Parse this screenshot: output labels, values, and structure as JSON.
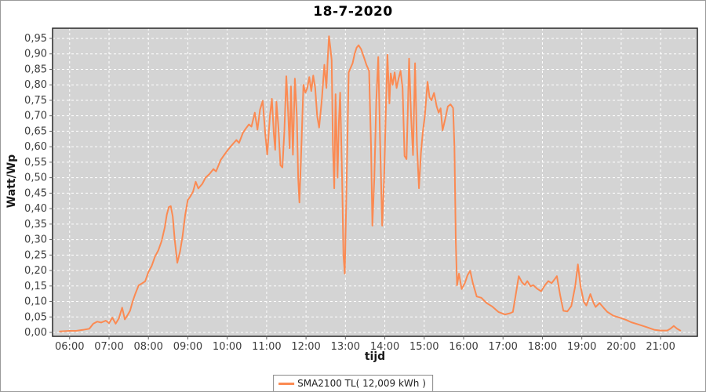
{
  "title": "18-7-2020",
  "axis": {
    "y_title": "Watt/Wp",
    "x_title": "tijd"
  },
  "legend": {
    "label": "SMA2100 TL( 12,009 kWh )"
  },
  "colors": {
    "plot_bg": "#d4d4d4",
    "grid": "#ffffff",
    "line": "#fb8a52",
    "plot_border": "#262626",
    "tick": "#666666",
    "tick_label": "#3d3d3d"
  },
  "chart_data": {
    "type": "line",
    "title": "18-7-2020",
    "xlabel": "tijd",
    "ylabel": "Watt/Wp",
    "ylim": [
      0,
      0.95
    ],
    "x_range_minutes": [
      334,
      1316
    ],
    "grid": true,
    "legend_position": "bottom-center",
    "x_tick_labels": [
      "06:00",
      "07:00",
      "08:00",
      "09:00",
      "10:00",
      "11:00",
      "12:00",
      "13:00",
      "14:00",
      "15:00",
      "16:00",
      "17:00",
      "18:00",
      "19:00",
      "20:00",
      "21:00"
    ],
    "x_tick_minutes": [
      360,
      420,
      480,
      540,
      600,
      660,
      720,
      780,
      840,
      900,
      960,
      1020,
      1080,
      1140,
      1200,
      1260
    ],
    "y_tick_labels": [
      "0,00",
      "0,05",
      "0,10",
      "0,15",
      "0,20",
      "0,25",
      "0,30",
      "0,35",
      "0,40",
      "0,45",
      "0,50",
      "0,55",
      "0,60",
      "0,65",
      "0,70",
      "0,75",
      "0,80",
      "0,85",
      "0,90",
      "0,95"
    ],
    "y_tick_step": 0.05,
    "series": [
      {
        "name": "SMA2100 TL( 12,009 kWh )",
        "color": "#fb8a52",
        "points": [
          [
            "05:45",
            0.003
          ],
          [
            "06:00",
            0.005
          ],
          [
            "06:10",
            0.005
          ],
          [
            "06:20",
            0.008
          ],
          [
            "06:30",
            0.012
          ],
          [
            "06:36",
            0.028
          ],
          [
            "06:42",
            0.035
          ],
          [
            "06:48",
            0.032
          ],
          [
            "06:55",
            0.038
          ],
          [
            "07:00",
            0.03
          ],
          [
            "07:05",
            0.048
          ],
          [
            "07:10",
            0.028
          ],
          [
            "07:15",
            0.045
          ],
          [
            "07:20",
            0.08
          ],
          [
            "07:24",
            0.042
          ],
          [
            "07:28",
            0.055
          ],
          [
            "07:32",
            0.07
          ],
          [
            "07:36",
            0.1
          ],
          [
            "07:40",
            0.125
          ],
          [
            "07:45",
            0.152
          ],
          [
            "07:50",
            0.158
          ],
          [
            "07:55",
            0.165
          ],
          [
            "08:00",
            0.195
          ],
          [
            "08:05",
            0.215
          ],
          [
            "08:10",
            0.245
          ],
          [
            "08:15",
            0.265
          ],
          [
            "08:20",
            0.295
          ],
          [
            "08:25",
            0.34
          ],
          [
            "08:28",
            0.38
          ],
          [
            "08:31",
            0.405
          ],
          [
            "08:34",
            0.408
          ],
          [
            "08:37",
            0.375
          ],
          [
            "08:40",
            0.3
          ],
          [
            "08:44",
            0.225
          ],
          [
            "08:48",
            0.26
          ],
          [
            "08:52",
            0.31
          ],
          [
            "08:56",
            0.38
          ],
          [
            "09:00",
            0.428
          ],
          [
            "09:04",
            0.44
          ],
          [
            "09:08",
            0.455
          ],
          [
            "09:12",
            0.487
          ],
          [
            "09:16",
            0.465
          ],
          [
            "09:22",
            0.48
          ],
          [
            "09:27",
            0.5
          ],
          [
            "09:33",
            0.512
          ],
          [
            "09:39",
            0.528
          ],
          [
            "09:43",
            0.52
          ],
          [
            "09:50",
            0.557
          ],
          [
            "09:56",
            0.575
          ],
          [
            "10:00",
            0.587
          ],
          [
            "10:05",
            0.6
          ],
          [
            "10:10",
            0.612
          ],
          [
            "10:14",
            0.622
          ],
          [
            "10:18",
            0.612
          ],
          [
            "10:24",
            0.645
          ],
          [
            "10:28",
            0.658
          ],
          [
            "10:33",
            0.672
          ],
          [
            "10:37",
            0.665
          ],
          [
            "10:42",
            0.71
          ],
          [
            "10:46",
            0.655
          ],
          [
            "10:50",
            0.72
          ],
          [
            "10:54",
            0.748
          ],
          [
            "10:58",
            0.64
          ],
          [
            "11:01",
            0.575
          ],
          [
            "11:05",
            0.7
          ],
          [
            "11:08",
            0.755
          ],
          [
            "11:11",
            0.64
          ],
          [
            "11:13",
            0.59
          ],
          [
            "11:15",
            0.745
          ],
          [
            "11:18",
            0.66
          ],
          [
            "11:21",
            0.54
          ],
          [
            "11:24",
            0.533
          ],
          [
            "11:27",
            0.65
          ],
          [
            "11:30",
            0.828
          ],
          [
            "11:33",
            0.7
          ],
          [
            "11:35",
            0.595
          ],
          [
            "11:37",
            0.795
          ],
          [
            "11:40",
            0.574
          ],
          [
            "11:43",
            0.82
          ],
          [
            "11:46",
            0.7
          ],
          [
            "11:48",
            0.5
          ],
          [
            "11:50",
            0.42
          ],
          [
            "11:53",
            0.6
          ],
          [
            "11:56",
            0.8
          ],
          [
            "11:59",
            0.775
          ],
          [
            "12:02",
            0.79
          ],
          [
            "12:05",
            0.825
          ],
          [
            "12:08",
            0.78
          ],
          [
            "12:11",
            0.83
          ],
          [
            "12:14",
            0.79
          ],
          [
            "12:17",
            0.7
          ],
          [
            "12:20",
            0.662
          ],
          [
            "12:24",
            0.75
          ],
          [
            "12:28",
            0.865
          ],
          [
            "12:31",
            0.79
          ],
          [
            "12:33",
            0.88
          ],
          [
            "12:35",
            0.957
          ],
          [
            "12:37",
            0.92
          ],
          [
            "12:39",
            0.88
          ],
          [
            "12:41",
            0.6
          ],
          [
            "12:43",
            0.466
          ],
          [
            "12:45",
            0.77
          ],
          [
            "12:48",
            0.5
          ],
          [
            "12:50",
            0.68
          ],
          [
            "12:52",
            0.775
          ],
          [
            "12:55",
            0.5
          ],
          [
            "12:57",
            0.25
          ],
          [
            "12:59",
            0.19
          ],
          [
            "13:02",
            0.5
          ],
          [
            "13:05",
            0.84
          ],
          [
            "13:08",
            0.855
          ],
          [
            "13:11",
            0.87
          ],
          [
            "13:14",
            0.9
          ],
          [
            "13:17",
            0.92
          ],
          [
            "13:20",
            0.928
          ],
          [
            "13:24",
            0.915
          ],
          [
            "13:28",
            0.89
          ],
          [
            "13:32",
            0.865
          ],
          [
            "13:36",
            0.845
          ],
          [
            "13:39",
            0.6
          ],
          [
            "13:41",
            0.345
          ],
          [
            "13:44",
            0.5
          ],
          [
            "13:47",
            0.75
          ],
          [
            "13:50",
            0.89
          ],
          [
            "13:53",
            0.6
          ],
          [
            "13:56",
            0.345
          ],
          [
            "13:59",
            0.5
          ],
          [
            "14:02",
            0.75
          ],
          [
            "14:04",
            0.897
          ],
          [
            "14:07",
            0.74
          ],
          [
            "14:09",
            0.837
          ],
          [
            "14:12",
            0.8
          ],
          [
            "14:15",
            0.84
          ],
          [
            "14:18",
            0.79
          ],
          [
            "14:21",
            0.82
          ],
          [
            "14:24",
            0.845
          ],
          [
            "14:27",
            0.79
          ],
          [
            "14:30",
            0.57
          ],
          [
            "14:33",
            0.56
          ],
          [
            "14:35",
            0.72
          ],
          [
            "14:37",
            0.885
          ],
          [
            "14:40",
            0.7
          ],
          [
            "14:43",
            0.573
          ],
          [
            "14:46",
            0.87
          ],
          [
            "14:49",
            0.6
          ],
          [
            "14:52",
            0.466
          ],
          [
            "14:55",
            0.58
          ],
          [
            "14:58",
            0.65
          ],
          [
            "15:01",
            0.7
          ],
          [
            "15:05",
            0.81
          ],
          [
            "15:08",
            0.76
          ],
          [
            "15:11",
            0.75
          ],
          [
            "15:15",
            0.774
          ],
          [
            "15:19",
            0.73
          ],
          [
            "15:22",
            0.71
          ],
          [
            "15:25",
            0.724
          ],
          [
            "15:28",
            0.653
          ],
          [
            "15:32",
            0.69
          ],
          [
            "15:36",
            0.73
          ],
          [
            "15:40",
            0.737
          ],
          [
            "15:44",
            0.725
          ],
          [
            "15:46",
            0.6
          ],
          [
            "15:48",
            0.3
          ],
          [
            "15:50",
            0.152
          ],
          [
            "15:53",
            0.19
          ],
          [
            "15:57",
            0.14
          ],
          [
            "16:02",
            0.16
          ],
          [
            "16:06",
            0.185
          ],
          [
            "16:10",
            0.199
          ],
          [
            "16:14",
            0.16
          ],
          [
            "16:20",
            0.116
          ],
          [
            "16:27",
            0.112
          ],
          [
            "16:35",
            0.095
          ],
          [
            "16:44",
            0.083
          ],
          [
            "16:53",
            0.066
          ],
          [
            "17:03",
            0.058
          ],
          [
            "17:11",
            0.062
          ],
          [
            "17:15",
            0.066
          ],
          [
            "17:19",
            0.116
          ],
          [
            "17:24",
            0.182
          ],
          [
            "17:29",
            0.162
          ],
          [
            "17:33",
            0.153
          ],
          [
            "17:37",
            0.166
          ],
          [
            "17:42",
            0.149
          ],
          [
            "17:46",
            0.153
          ],
          [
            "17:52",
            0.141
          ],
          [
            "17:58",
            0.133
          ],
          [
            "18:04",
            0.153
          ],
          [
            "18:09",
            0.166
          ],
          [
            "18:14",
            0.159
          ],
          [
            "18:18",
            0.17
          ],
          [
            "18:22",
            0.182
          ],
          [
            "18:27",
            0.12
          ],
          [
            "18:32",
            0.07
          ],
          [
            "18:38",
            0.068
          ],
          [
            "18:44",
            0.085
          ],
          [
            "18:50",
            0.15
          ],
          [
            "18:54",
            0.22
          ],
          [
            "18:58",
            0.15
          ],
          [
            "19:03",
            0.099
          ],
          [
            "19:07",
            0.087
          ],
          [
            "19:13",
            0.124
          ],
          [
            "19:18",
            0.095
          ],
          [
            "19:21",
            0.082
          ],
          [
            "19:27",
            0.095
          ],
          [
            "19:33",
            0.08
          ],
          [
            "19:39",
            0.066
          ],
          [
            "19:48",
            0.054
          ],
          [
            "20:00",
            0.046
          ],
          [
            "20:08",
            0.04
          ],
          [
            "20:15",
            0.033
          ],
          [
            "20:27",
            0.025
          ],
          [
            "20:39",
            0.017
          ],
          [
            "20:51",
            0.008
          ],
          [
            "21:00",
            0.006
          ],
          [
            "21:10",
            0.006
          ],
          [
            "21:15",
            0.012
          ],
          [
            "21:20",
            0.021
          ],
          [
            "21:25",
            0.012
          ],
          [
            "21:30",
            0.006
          ]
        ]
      }
    ]
  }
}
